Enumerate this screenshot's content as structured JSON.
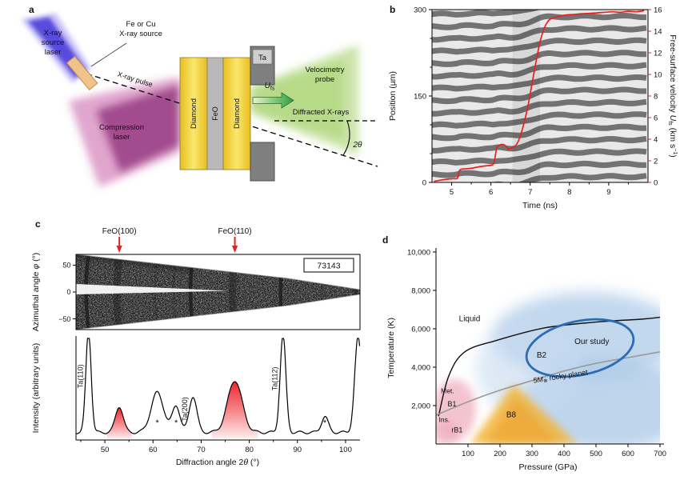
{
  "figure": {
    "panels": {
      "a": {
        "label": "a",
        "xray_source_laser": [
          "X-ray",
          "source",
          "laser"
        ],
        "xray_source_material": [
          "Fe or Cu",
          "X-ray source"
        ],
        "xray_pulse": "X-ray pulse",
        "compression_laser": [
          "Compression",
          "laser"
        ],
        "layer_diamond_left": "Diamond",
        "layer_feo": "FeO",
        "layer_diamond_right": "Diamond",
        "layer_ta": "Ta",
        "velocimetry_probe": [
          "Velocimetry",
          "probe"
        ],
        "ufs_symbol": "U",
        "ufs_subscript": "fs",
        "diffracted_xrays": "Diffracted X-rays",
        "two_theta": "2θ"
      },
      "b": {
        "label": "b",
        "xlabel": "Time (ns)",
        "ylabel_left": "Position (µm)",
        "ylabel_right_parts": [
          "Free-surface velocity ",
          "U",
          "fs",
          " (km s",
          "−1",
          ")"
        ]
      },
      "c": {
        "label": "c",
        "shot_id": "73143",
        "ylabel_map_parts": [
          "Azimuthal angle ",
          "φ",
          " (°)"
        ],
        "ylabel_profile": "Intensity (arbitrary units)",
        "xlabel_parts": [
          "Diffraction angle 2",
          "θ",
          " (°)"
        ]
      },
      "d": {
        "label": "d",
        "xlabel": "Pressure (GPa)",
        "ylabel": "Temperature (K)"
      }
    }
  },
  "colors": {
    "velocity_curve": "#e8211d",
    "feo_highlight": "#ed1c24",
    "study_ellipse": "#2b6cb5",
    "b1_region": "#f2b9c9",
    "b8_region": "#f3b437",
    "b2_region": "#aecbe8",
    "geotherm": "#9a9a9a"
  },
  "chart_data": [
    {
      "id": "velocity_streak",
      "panel": "b",
      "type": "line",
      "title": "",
      "xlabel": "Time (ns)",
      "xlim": [
        4.5,
        10
      ],
      "xticks": [
        {
          "v": 5,
          "label": "5"
        },
        {
          "v": 6,
          "label": "6"
        },
        {
          "v": 7,
          "label": "7"
        },
        {
          "v": 8,
          "label": "8"
        },
        {
          "v": 9,
          "label": "9"
        }
      ],
      "xticks_minor": [
        5.5,
        6.5,
        7.5,
        8.5,
        9.5
      ],
      "ylabel_left": "Position (µm)",
      "ylim_left": [
        0,
        300
      ],
      "yticks_left": [
        {
          "v": 0,
          "label": "0"
        },
        {
          "v": 150,
          "label": "150"
        },
        {
          "v": 300,
          "label": "300"
        }
      ],
      "yticks_left_minor": [
        50,
        100,
        200,
        250
      ],
      "ylabel_right": "Free-surface velocity Ufs (km s−1)",
      "ylim_right": [
        0,
        16
      ],
      "yticks_right": [
        {
          "v": 0,
          "label": "0"
        },
        {
          "v": 2,
          "label": "2"
        },
        {
          "v": 4,
          "label": "4"
        },
        {
          "v": 6,
          "label": "6"
        },
        {
          "v": 8,
          "label": "8"
        },
        {
          "v": 10,
          "label": "10"
        },
        {
          "v": 12,
          "label": "12"
        },
        {
          "v": 14,
          "label": "14"
        },
        {
          "v": 16,
          "label": "16"
        }
      ],
      "series": [
        {
          "name": "free-surface velocity",
          "axis": "right",
          "color": "#e8211d",
          "x": [
            4.55,
            4.7,
            4.9,
            5.05,
            5.15,
            5.2,
            5.3,
            5.5,
            5.7,
            5.9,
            6.05,
            6.1,
            6.15,
            6.25,
            6.35,
            6.45,
            6.55,
            6.65,
            6.75,
            6.85,
            6.95,
            7.05,
            7.15,
            7.25,
            7.35,
            7.45,
            7.55,
            7.7,
            7.9,
            8.1,
            8.3,
            8.5,
            8.7,
            8.9,
            9.1,
            9.3,
            9.5,
            9.7,
            9.9
          ],
          "y": [
            0.1,
            0.2,
            0.3,
            0.35,
            0.4,
            1.1,
            1.25,
            1.3,
            1.45,
            1.55,
            1.65,
            2.2,
            3.2,
            3.5,
            3.45,
            3.1,
            3.25,
            3.5,
            4.3,
            5.6,
            7.2,
            9.2,
            11.2,
            13.0,
            14.2,
            14.9,
            15.2,
            15.35,
            15.5,
            15.55,
            15.6,
            15.65,
            15.7,
            15.75,
            15.8,
            15.75,
            15.85,
            15.8,
            15.9
          ]
        }
      ]
    },
    {
      "id": "diffraction",
      "panel": "c",
      "type": "line",
      "shot_label": "73143",
      "xlabel": "Diffraction angle 2θ (°)",
      "xlim": [
        44,
        103
      ],
      "xticks": [
        {
          "v": 50,
          "label": "50"
        },
        {
          "v": 60,
          "label": "60"
        },
        {
          "v": 70,
          "label": "70"
        },
        {
          "v": 80,
          "label": "80"
        },
        {
          "v": 90,
          "label": "90"
        },
        {
          "v": 100,
          "label": "100"
        }
      ],
      "xticks_minor": [
        45,
        55,
        65,
        75,
        85,
        95
      ],
      "ylabel": "Intensity (arbitrary units)",
      "azimuthal": {
        "ylabel": "Azimuthal angle φ (°)",
        "ylim": [
          -70,
          70
        ],
        "yticks": [
          {
            "v": 50,
            "label": "50"
          },
          {
            "v": 0,
            "label": "0"
          },
          {
            "v": -50,
            "label": "−50"
          }
        ]
      },
      "baseline": 0.06,
      "peaks": [
        {
          "center": 46.6,
          "sigma": 0.55,
          "height": 1.02,
          "label": "Ta(110)",
          "label_style": "vertical"
        },
        {
          "center": 53.0,
          "sigma": 0.8,
          "height": 0.26,
          "label": "FeO(100)",
          "highlight": "red"
        },
        {
          "center": 60.9,
          "sigma": 1.3,
          "height": 0.4,
          "label": "*",
          "label_style": "asterisk"
        },
        {
          "center": 64.8,
          "sigma": 0.8,
          "height": 0.27,
          "label": "*",
          "label_style": "asterisk"
        },
        {
          "center": 68.3,
          "sigma": 0.8,
          "height": 0.36,
          "label": "Ta(200)",
          "label_style": "vertical"
        },
        {
          "center": 77.0,
          "sigma": 1.5,
          "height": 0.52,
          "label": "FeO(110)",
          "highlight": "red"
        },
        {
          "center": 87.0,
          "sigma": 0.6,
          "height": 0.97,
          "label": "Ta(112)",
          "label_style": "vertical"
        },
        {
          "center": 95.7,
          "sigma": 0.7,
          "height": 0.16,
          "label": "*",
          "label_style": "asterisk"
        },
        {
          "center": 102.6,
          "sigma": 0.7,
          "height": 0.95,
          "label": ""
        }
      ]
    },
    {
      "id": "phase_diagram",
      "panel": "d",
      "type": "area",
      "xlabel": "Pressure (GPa)",
      "ylabel": "Temperature (K)",
      "xlim": [
        0,
        700
      ],
      "ylim": [
        0,
        10000
      ],
      "xticks": [
        {
          "v": 100,
          "label": "100"
        },
        {
          "v": 200,
          "label": "200"
        },
        {
          "v": 300,
          "label": "300"
        },
        {
          "v": 400,
          "label": "400"
        },
        {
          "v": 500,
          "label": "500"
        },
        {
          "v": 600,
          "label": "600"
        },
        {
          "v": 700,
          "label": "700"
        }
      ],
      "yticks": [
        {
          "v": 2000,
          "label": "2,000"
        },
        {
          "v": 4000,
          "label": "4,000"
        },
        {
          "v": 6000,
          "label": "6,000"
        },
        {
          "v": 8000,
          "label": "8,000"
        },
        {
          "v": 10000,
          "label": "10,000"
        }
      ],
      "regions": [
        "Liquid",
        "B1",
        "B2",
        "B8",
        "rB1",
        "Ins.",
        "Met."
      ],
      "labels": [
        {
          "text": "Liquid",
          "x": 105,
          "y": 6400,
          "size": 10
        },
        {
          "text": "Met.",
          "x": 36,
          "y": 2650,
          "size": 8.5
        },
        {
          "text": "B1",
          "x": 50,
          "y": 1950,
          "size": 9
        },
        {
          "text": "Ins.",
          "x": 26,
          "y": 1150,
          "size": 8.5
        },
        {
          "text": "rB1",
          "x": 66,
          "y": 600,
          "size": 9
        },
        {
          "text": "B8",
          "x": 235,
          "y": 1400,
          "size": 10
        },
        {
          "text": "B2",
          "x": 330,
          "y": 4500,
          "size": 10
        },
        {
          "text": "Our study",
          "x": 487,
          "y": 5200,
          "size": 10
        }
      ],
      "geotherm_label": {
        "parts": [
          "5M",
          "⊕",
          " rocky planet"
        ],
        "x": 390,
        "y": 3400,
        "rotate": -9,
        "color": "#8f8f8f",
        "size": 9
      },
      "melting_curve": {
        "name": "melting curve",
        "color": "#111111",
        "x": [
          8,
          40,
          90,
          190,
          340,
          500,
          640,
          700
        ],
        "y": [
          1450,
          3550,
          4800,
          5400,
          6050,
          6350,
          6500,
          6600
        ]
      },
      "geotherm": {
        "name": "5M⊕ rocky planet geotherm",
        "color": "#9a9a9a",
        "x": [
          0,
          100,
          200,
          300,
          400,
          500,
          600,
          700
        ],
        "y": [
          1500,
          2200,
          2800,
          3300,
          3800,
          4200,
          4500,
          4800
        ]
      },
      "study_ellipse": {
        "x": 450,
        "y": 5000,
        "rx": 170,
        "ry": 1400,
        "rotate": -12,
        "color": "#2b6cb5"
      }
    }
  ]
}
